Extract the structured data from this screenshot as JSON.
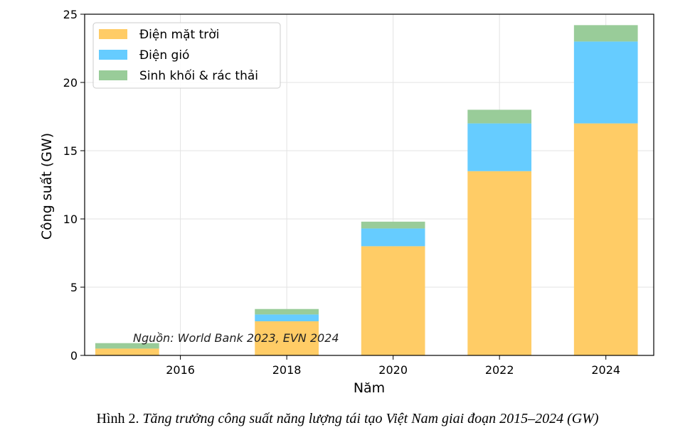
{
  "chart_data": {
    "type": "bar",
    "stacked": true,
    "x": [
      2015,
      2018,
      2020,
      2022,
      2024
    ],
    "series": [
      {
        "name": "Điện mặt trời",
        "color": "#ffcc66",
        "values": [
          0.5,
          2.5,
          8.0,
          13.5,
          17.0
        ]
      },
      {
        "name": "Điện gió",
        "color": "#66ccff",
        "values": [
          0.0,
          0.5,
          1.3,
          3.5,
          6.0
        ]
      },
      {
        "name": "Sinh khối & rác thải",
        "color": "#99cc99",
        "values": [
          0.4,
          0.4,
          0.5,
          1.0,
          1.2
        ]
      }
    ],
    "xticks": [
      "2016",
      "2018",
      "2020",
      "2022",
      "2024"
    ],
    "xtick_values": [
      2016,
      2018,
      2020,
      2022,
      2024
    ],
    "yticks": [
      "0",
      "5",
      "10",
      "15",
      "20",
      "25"
    ],
    "ytick_values": [
      0,
      5,
      10,
      15,
      20,
      25
    ],
    "xlim": [
      2014.2,
      2024.9
    ],
    "ylim": [
      0,
      25
    ],
    "xlabel": "Năm",
    "ylabel": "Công suất (GW)",
    "grid": true,
    "legend_position": "top-left",
    "annotation": "Nguồn: World Bank 2023, EVN 2024"
  },
  "caption": {
    "label": "Hình 2.",
    "title": "Tăng trưởng công suất năng lượng tái tạo Việt Nam giai đoạn 2015–2024 (GW)"
  }
}
